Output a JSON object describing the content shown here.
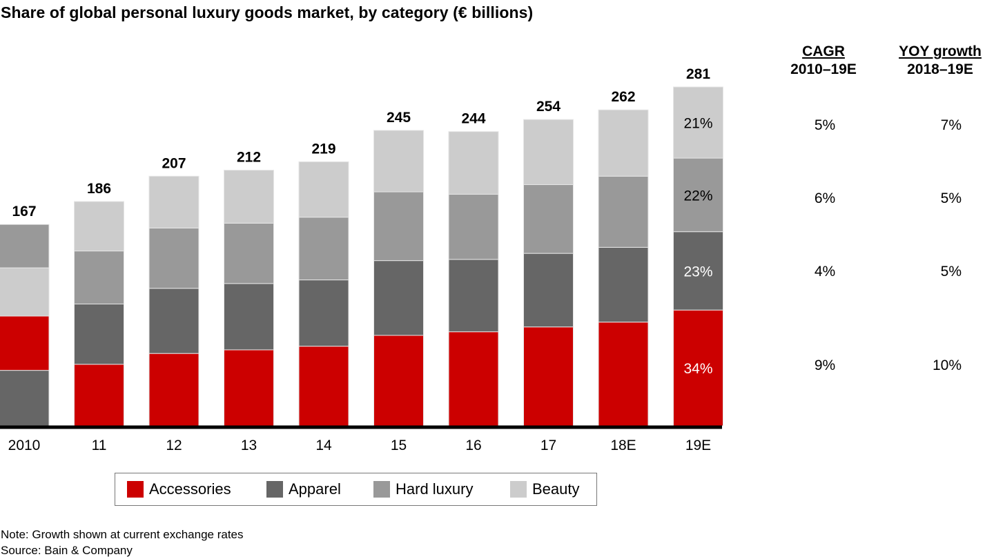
{
  "chart_data": {
    "type": "bar",
    "stacked": true,
    "title": "Share of global personal luxury goods market, by category (€ billions)",
    "xlabel": "",
    "ylabel": "",
    "ylim": [
      0,
      281
    ],
    "grid": false,
    "categories": [
      "2010",
      "11",
      "12",
      "13",
      "14",
      "15",
      "16",
      "17",
      "18E",
      "19E"
    ],
    "totals": [
      167,
      186,
      207,
      212,
      219,
      245,
      244,
      254,
      262,
      281
    ],
    "series": [
      {
        "name": "Accessories",
        "color": "#cc0000",
        "values": [
          45,
          51,
          60,
          63,
          66,
          75,
          78,
          82,
          86,
          96
        ]
      },
      {
        "name": "Apparel",
        "color": "#666666",
        "values": [
          46,
          50,
          54,
          55,
          55,
          62,
          60,
          61,
          62,
          65
        ]
      },
      {
        "name": "Hard luxury",
        "color": "#999999",
        "values": [
          36,
          44,
          50,
          50,
          52,
          57,
          54,
          57,
          59,
          61
        ]
      },
      {
        "name": "Beauty",
        "color": "#cccccc",
        "values": [
          40,
          41,
          43,
          44,
          46,
          51,
          52,
          54,
          55,
          59
        ]
      }
    ],
    "stack_order_overrides": {
      "2010": [
        "Apparel",
        "Accessories",
        "Beauty",
        "Hard luxury"
      ]
    },
    "segment_labels_19E": {
      "Accessories": "34%",
      "Apparel": "23%",
      "Hard luxury": "22%",
      "Beauty": "21%"
    },
    "legend": [
      "Accessories",
      "Apparel",
      "Hard luxury",
      "Beauty"
    ],
    "legend_position": "bottom"
  },
  "growth_table": {
    "columns": [
      {
        "heading_underlined": "CAGR",
        "heading_sub": "2010–19E"
      },
      {
        "heading_underlined": "YOY growth",
        "heading_sub": "2018–19E"
      }
    ],
    "rows": [
      {
        "category": "Beauty",
        "cagr": "5%",
        "yoy": "7%"
      },
      {
        "category": "Hard luxury",
        "cagr": "6%",
        "yoy": "5%"
      },
      {
        "category": "Apparel",
        "cagr": "4%",
        "yoy": "5%"
      },
      {
        "category": "Accessories",
        "cagr": "9%",
        "yoy": "10%"
      }
    ]
  },
  "footer": {
    "note": "Note: Growth shown at current exchange rates",
    "source": "Source: Bain & Company"
  }
}
